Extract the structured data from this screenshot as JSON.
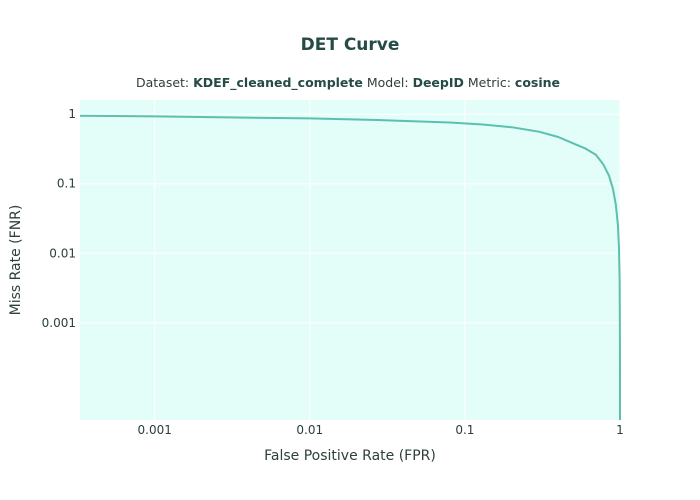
{
  "chart_data": {
    "type": "line",
    "title": "DET Curve",
    "subtitle": {
      "dataset_label": "Dataset: ",
      "dataset": "KDEF_cleaned_complete",
      "model_label": " Model: ",
      "model": "DeepID",
      "metric_label": " Metric: ",
      "metric": "cosine"
    },
    "xlabel": "False Positive Rate (FPR)",
    "ylabel": "Miss Rate (FNR)",
    "xscale": "log",
    "yscale": "log",
    "xlim": [
      0.00033,
      1
    ],
    "ylim": [
      4e-05,
      1.6
    ],
    "x_ticks": [
      {
        "value": 0.001,
        "label": "0.001"
      },
      {
        "value": 0.01,
        "label": "0.01"
      },
      {
        "value": 0.1,
        "label": "0.1"
      },
      {
        "value": 1,
        "label": "1"
      }
    ],
    "y_ticks": [
      {
        "value": 0.001,
        "label": "0.001"
      },
      {
        "value": 0.01,
        "label": "0.01"
      },
      {
        "value": 0.1,
        "label": "0.1"
      },
      {
        "value": 1,
        "label": "1"
      }
    ],
    "grid": true,
    "colors": {
      "line": "#5cc0ae",
      "plot_background": "#e3fdf8",
      "grid": "#ffffff",
      "title": "#244b45"
    },
    "series": [
      {
        "x": [
          0.00033,
          0.001,
          0.003,
          0.01,
          0.03,
          0.08,
          0.13,
          0.2,
          0.3,
          0.4,
          0.5,
          0.6,
          0.7,
          0.78,
          0.85,
          0.9,
          0.94,
          0.97,
          0.985,
          0.995,
          0.998,
          1.0,
          1.0
        ],
        "y": [
          0.95,
          0.93,
          0.9,
          0.87,
          0.82,
          0.76,
          0.71,
          0.65,
          0.56,
          0.47,
          0.38,
          0.32,
          0.26,
          0.19,
          0.13,
          0.085,
          0.05,
          0.025,
          0.012,
          0.004,
          0.001,
          0.0002,
          4e-05
        ]
      }
    ]
  }
}
